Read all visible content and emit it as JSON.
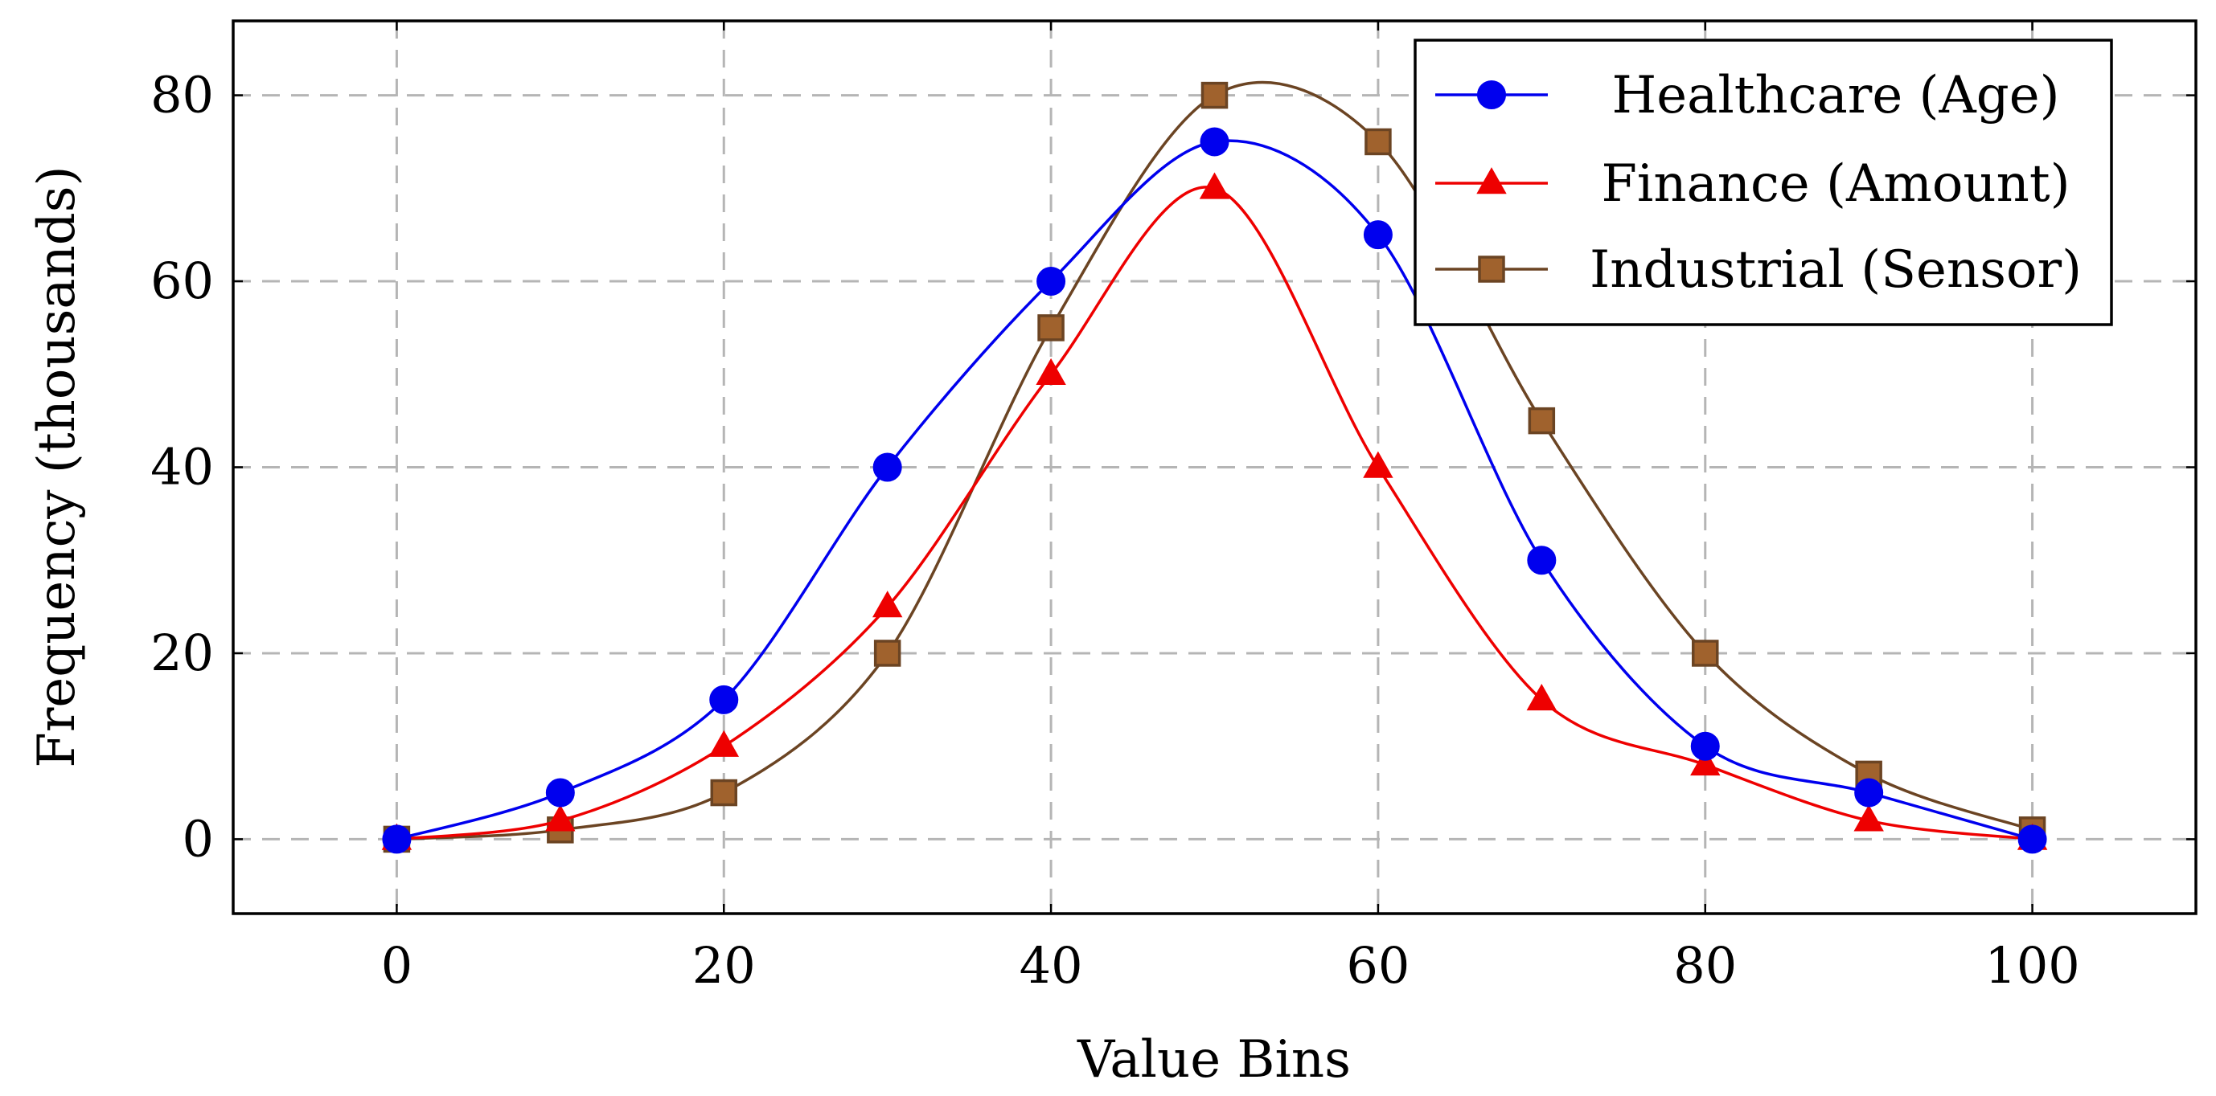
{
  "chart_data": {
    "type": "line",
    "title": "",
    "xlabel": "Value Bins",
    "ylabel": "Frequency (thousands)",
    "xlim": [
      -10,
      110
    ],
    "ylim": [
      -8,
      88
    ],
    "xticks": [
      0,
      20,
      40,
      60,
      80,
      100
    ],
    "yticks": [
      0,
      20,
      40,
      60,
      80
    ],
    "xtick_labels": [
      "0",
      "20",
      "40",
      "60",
      "80",
      "100"
    ],
    "ytick_labels": [
      "0",
      "20",
      "40",
      "60",
      "80"
    ],
    "grid": true,
    "legend_position": "top-right",
    "smooth": true,
    "x": [
      0,
      10,
      20,
      30,
      40,
      50,
      60,
      70,
      80,
      90,
      100
    ],
    "series": [
      {
        "name": "Healthcare (Age)",
        "color": "#0000ee",
        "marker": "circle",
        "values": [
          0,
          5,
          15,
          40,
          60,
          75,
          65,
          30,
          10,
          5,
          0
        ]
      },
      {
        "name": "Finance (Amount)",
        "color": "#ee0000",
        "marker": "triangle",
        "values": [
          0,
          2,
          10,
          25,
          50,
          70,
          40,
          15,
          8,
          2,
          0
        ]
      },
      {
        "name": "Industrial (Sensor)",
        "color": "#a0622d",
        "line_color": "#6b4423",
        "marker": "square",
        "values": [
          0,
          1,
          5,
          20,
          55,
          80,
          75,
          45,
          20,
          7,
          1
        ]
      }
    ]
  }
}
